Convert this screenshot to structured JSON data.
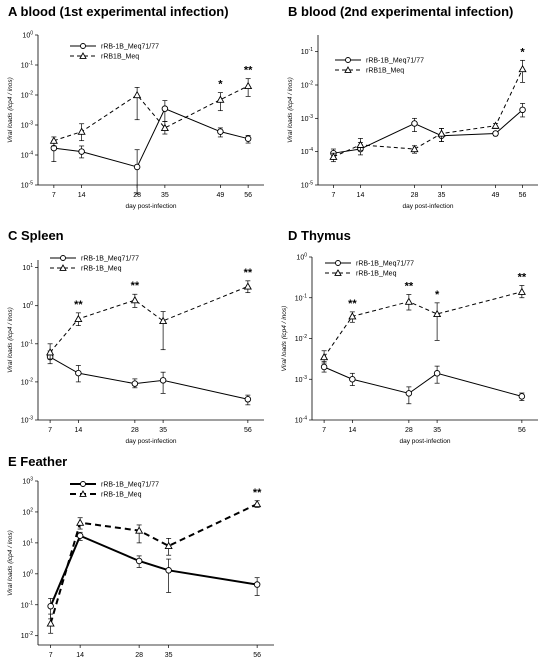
{
  "chart_data": [
    {
      "type": "line",
      "title": "A blood (1st experimental infection)",
      "xlabel": "day post-infection",
      "ylabel": "Viral loads (icp4 / inos)",
      "ylim_log10": [
        -5,
        0
      ],
      "yscale": "log",
      "ytick_exponents": [
        -5,
        -4,
        -3,
        -2,
        -1,
        0
      ],
      "x": [
        7,
        14,
        28,
        35,
        49,
        56
      ],
      "legend_position": "top-center",
      "series": [
        {
          "name": "rRB-1B_Meq71/77",
          "style": "solid",
          "marker": "circle",
          "values": [
            0.00017,
            0.00013,
            4e-05,
            0.0035,
            0.0006,
            0.00035
          ],
          "err_low": [
            6e-05,
            8e-05,
            5e-06,
            0.0013,
            0.0004,
            0.00025
          ],
          "err_high": [
            0.0003,
            0.0002,
            0.00015,
            0.0065,
            0.0008,
            0.00045
          ]
        },
        {
          "name": "rRB1B_Meq",
          "style": "dashed",
          "marker": "triangle",
          "values": [
            0.0003,
            0.0006,
            0.01,
            0.0008,
            0.007,
            0.02
          ],
          "err_low": [
            0.0002,
            0.0003,
            0.0015,
            0.0005,
            0.003,
            0.009
          ],
          "err_high": [
            0.0004,
            0.0011,
            0.018,
            0.0013,
            0.012,
            0.035
          ]
        }
      ],
      "annotations": [
        {
          "x": 49,
          "text": "*"
        },
        {
          "x": 56,
          "text": "**"
        }
      ]
    },
    {
      "type": "line",
      "title": "B blood (2nd experimental infection)",
      "xlabel": "day post-infection",
      "ylabel": "Viral loads (icp4 / inos)",
      "yscale": "log",
      "ytick_exponents": [
        -5,
        -4,
        -3,
        -2,
        -1
      ],
      "ylim_log10": [
        -5,
        -0.5
      ],
      "x": [
        7,
        14,
        28,
        35,
        49,
        56
      ],
      "legend_position": "top-center",
      "series": [
        {
          "name": "rRB-1B_Meq71/77",
          "style": "solid",
          "marker": "circle",
          "values": [
            9e-05,
            0.00012,
            0.0007,
            0.0003,
            0.00035,
            0.0018
          ],
          "err_low": [
            6e-05,
            8e-05,
            0.0004,
            0.0002,
            0.0003,
            0.0011
          ],
          "err_high": [
            0.00012,
            0.00019,
            0.001,
            0.0005,
            0.0004,
            0.0028
          ]
        },
        {
          "name": "rRB1B_Meq",
          "style": "dashed",
          "marker": "triangle",
          "values": [
            7e-05,
            0.00016,
            0.00012,
            0.00035,
            0.0006,
            0.03
          ],
          "err_low": [
            5e-05,
            0.00011,
            9e-05,
            0.0002,
            0.0005,
            0.012
          ],
          "err_high": [
            9e-05,
            0.00025,
            0.00015,
            0.0005,
            0.0007,
            0.055
          ]
        }
      ],
      "annotations": [
        {
          "x": 56,
          "text": "*"
        }
      ]
    },
    {
      "type": "line",
      "title": "C Spleen",
      "xlabel": "day post-infection",
      "ylabel": "Viral loads (icp4 / inos)",
      "yscale": "log",
      "ytick_exponents": [
        -3,
        -2,
        -1,
        0,
        1
      ],
      "ylim_log10": [
        -3,
        1.2
      ],
      "x": [
        7,
        14,
        28,
        35,
        56
      ],
      "legend_position": "top-left",
      "series": [
        {
          "name": "rRB-1B_Meq71/77",
          "style": "solid",
          "marker": "circle",
          "values": [
            0.045,
            0.017,
            0.009,
            0.011,
            0.0035
          ],
          "err_low": [
            0.03,
            0.01,
            0.007,
            0.005,
            0.0025
          ],
          "err_high": [
            0.065,
            0.027,
            0.012,
            0.018,
            0.0045
          ]
        },
        {
          "name": "rRB-1B_Meq",
          "style": "dashed",
          "marker": "triangle",
          "values": [
            0.06,
            0.45,
            1.4,
            0.4,
            3.2
          ],
          "err_low": [
            0.04,
            0.3,
            0.9,
            0.07,
            2.2
          ],
          "err_high": [
            0.1,
            0.65,
            2.0,
            0.7,
            4.5
          ]
        }
      ],
      "annotations": [
        {
          "x": 14,
          "text": "**"
        },
        {
          "x": 28,
          "text": "**"
        },
        {
          "x": 56,
          "text": "**"
        }
      ]
    },
    {
      "type": "line",
      "title": "D Thymus",
      "xlabel": "day post-infection",
      "ylabel": "Viral loads (icp4 / inos)",
      "yscale": "log",
      "ytick_exponents": [
        -4,
        -3,
        -2,
        -1,
        0
      ],
      "ylim_log10": [
        -4,
        0
      ],
      "x": [
        7,
        14,
        28,
        35,
        56
      ],
      "legend_position": "top-left",
      "series": [
        {
          "name": "rRB-1B_Meq71/77",
          "style": "solid",
          "marker": "circle",
          "values": [
            0.002,
            0.001,
            0.00045,
            0.0014,
            0.00038
          ],
          "err_low": [
            0.0015,
            0.0007,
            0.00025,
            0.0008,
            0.0003
          ],
          "err_high": [
            0.0027,
            0.0014,
            0.00065,
            0.0021,
            0.00046
          ]
        },
        {
          "name": "rRB-1B_Meq",
          "style": "dashed",
          "marker": "triangle",
          "values": [
            0.0035,
            0.035,
            0.08,
            0.04,
            0.14
          ],
          "err_low": [
            0.0025,
            0.025,
            0.05,
            0.009,
            0.1
          ],
          "err_high": [
            0.005,
            0.045,
            0.12,
            0.075,
            0.2
          ]
        }
      ],
      "annotations": [
        {
          "x": 14,
          "text": "**"
        },
        {
          "x": 28,
          "text": "**"
        },
        {
          "x": 35,
          "text": "*"
        },
        {
          "x": 56,
          "text": "**"
        }
      ]
    },
    {
      "type": "line",
      "title": "E Feather",
      "xlabel": "day post-infection",
      "ylabel": "Viral loads (icp4 / inos)",
      "yscale": "log",
      "ytick_exponents": [
        -2,
        -1,
        0,
        1,
        2,
        3
      ],
      "ylim_log10": [
        -2.3,
        3
      ],
      "x": [
        7,
        14,
        28,
        35,
        56
      ],
      "legend_position": "top-left",
      "series": [
        {
          "name": "rRB-1B_Meq71/77",
          "style": "solid-bold",
          "marker": "circle",
          "values": [
            0.09,
            17,
            2.6,
            1.3,
            0.45
          ],
          "err_low": [
            0.035,
            12,
            1.6,
            0.25,
            0.2
          ],
          "err_high": [
            0.16,
            22,
            3.8,
            3.0,
            0.75
          ]
        },
        {
          "name": "rRB-1B_Meq",
          "style": "dashed-bold",
          "marker": "triangle",
          "values": [
            0.025,
            45,
            25,
            8,
            180
          ],
          "err_low": [
            0.012,
            28,
            10,
            4,
            140
          ],
          "err_high": [
            0.05,
            65,
            38,
            14,
            230
          ]
        }
      ],
      "annotations": [
        {
          "x": 56,
          "text": "**"
        }
      ]
    }
  ]
}
